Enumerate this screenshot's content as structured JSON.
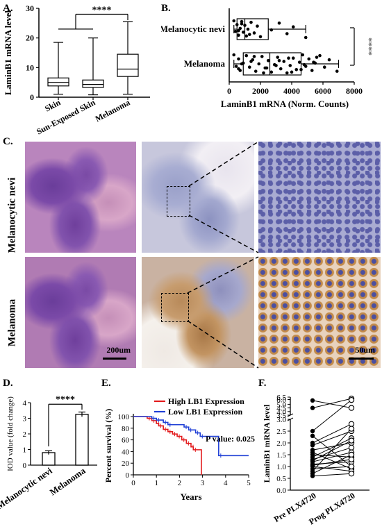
{
  "panels": {
    "a": "A.",
    "b": "B.",
    "c": "C.",
    "d": "D.",
    "e": "E.",
    "f": "F."
  },
  "chart_data": [
    {
      "id": "A",
      "type": "box",
      "ylabel": "LaminB1 mRNA level",
      "ylim": [
        0,
        30
      ],
      "yticks": [
        "0",
        "10",
        "20",
        "30"
      ],
      "categories": [
        "Skin",
        "Sun-Exposed Skin",
        "Melanoma"
      ],
      "boxes": [
        {
          "min": 1,
          "q1": 3.8,
          "median": 5,
          "q3": 6.5,
          "max": 18.5
        },
        {
          "min": 0.8,
          "q1": 3.3,
          "median": 4.3,
          "q3": 5.8,
          "max": 20
        },
        {
          "min": 1,
          "q1": 7,
          "median": 9.5,
          "q3": 14.5,
          "max": 25.5
        }
      ],
      "significance": "****"
    },
    {
      "id": "B",
      "type": "box-scatter",
      "orientation": "horizontal",
      "xlabel": "LaminB1 mRNA (Norm. Counts)",
      "xlim": [
        0,
        8000
      ],
      "xticks": [
        "0",
        "2000",
        "4000",
        "6000",
        "8000"
      ],
      "categories": [
        "Melanocytic nevi",
        "Melanoma"
      ],
      "boxes": [
        {
          "min": 300,
          "q1": 500,
          "median": 1000,
          "q3": 2500,
          "max": 4900
        },
        {
          "min": 300,
          "q1": 900,
          "median": 2600,
          "q3": 4600,
          "max": 7000
        }
      ],
      "points": [
        [
          300,
          400,
          500,
          600,
          700,
          800,
          900,
          1000,
          1100,
          1200,
          1400,
          1600,
          1800,
          2000,
          2700,
          3200,
          3700,
          4100,
          4900,
          600,
          800,
          1300
        ],
        [
          300,
          450,
          600,
          700,
          900,
          1100,
          1300,
          1500,
          1700,
          1900,
          2100,
          2300,
          2500,
          2700,
          2900,
          3100,
          3300,
          3500,
          3700,
          3900,
          4100,
          4300,
          4500,
          4700,
          4900,
          5100,
          5300,
          5500,
          5800,
          6100,
          6400,
          6900,
          800,
          1600,
          2400,
          3200,
          4000,
          4800,
          5600,
          600,
          1400,
          2200,
          3000,
          3800,
          4600,
          5400
        ]
      ],
      "significance": "****"
    },
    {
      "id": "D",
      "type": "bar",
      "ylabel": "IOD value (fold change)",
      "ylim": [
        0,
        4
      ],
      "yticks": [
        "0",
        "1",
        "2",
        "3",
        "4"
      ],
      "categories": [
        "Melanocytic nevi",
        "Melanoma"
      ],
      "values": [
        0.8,
        3.25
      ],
      "errors": [
        0.12,
        0.15
      ],
      "significance": "****"
    },
    {
      "id": "E",
      "type": "line",
      "xlabel": "Years",
      "ylabel": "Percent survival (%)",
      "xlim": [
        0,
        5
      ],
      "ylim": [
        0,
        100
      ],
      "xticks": [
        "0",
        "1",
        "2",
        "3",
        "4",
        "5"
      ],
      "yticks": [
        "0",
        "20",
        "40",
        "60",
        "80",
        "100"
      ],
      "series": [
        {
          "name": "High LB1 Expression",
          "color": "#e31a1c",
          "steps": [
            [
              0,
              100
            ],
            [
              0.6,
              97
            ],
            [
              0.8,
              93
            ],
            [
              1.0,
              88
            ],
            [
              1.1,
              84
            ],
            [
              1.3,
              78
            ],
            [
              1.5,
              74
            ],
            [
              1.7,
              70
            ],
            [
              1.9,
              66
            ],
            [
              2.1,
              60
            ],
            [
              2.3,
              54
            ],
            [
              2.5,
              48
            ],
            [
              2.6,
              43
            ],
            [
              2.95,
              0
            ]
          ]
        },
        {
          "name": "Low LB1 Expression",
          "color": "#1f3fd6",
          "steps": [
            [
              0,
              100
            ],
            [
              0.8,
              97
            ],
            [
              1.0,
              94
            ],
            [
              1.3,
              90
            ],
            [
              1.5,
              86
            ],
            [
              2.2,
              82
            ],
            [
              2.4,
              77
            ],
            [
              2.7,
              72
            ],
            [
              2.9,
              66
            ],
            [
              3.7,
              33
            ],
            [
              5,
              33
            ]
          ]
        }
      ],
      "annotation": "P value: 0.025"
    },
    {
      "id": "F",
      "type": "paired-scatter",
      "ylabel": "LaminB1 mRNA level",
      "categories": [
        "Pre PLX4720",
        "Prog PLX4720"
      ],
      "yticks_lower": [
        "0.0",
        "0.5",
        "1.0",
        "1.5",
        "2.0",
        "2.5",
        "3.0"
      ],
      "yticks_upper": [
        "3.5",
        "4.0",
        "4.5",
        "5.0",
        "6.0",
        "6.5"
      ],
      "pairs": [
        [
          5.8,
          4.5
        ],
        [
          4.5,
          6.2
        ],
        [
          2.3,
          1.0
        ],
        [
          2.0,
          2.8
        ],
        [
          1.9,
          2.5
        ],
        [
          1.7,
          2.0
        ],
        [
          1.6,
          0.9
        ],
        [
          1.5,
          1.4
        ],
        [
          1.4,
          2.2
        ],
        [
          1.3,
          1.8
        ],
        [
          1.2,
          1.6
        ],
        [
          1.1,
          1.2
        ],
        [
          1.0,
          0.8
        ],
        [
          0.9,
          1.0
        ],
        [
          0.8,
          2.6
        ],
        [
          0.7,
          1.5
        ],
        [
          0.6,
          0.7
        ],
        [
          2.5,
          5.9
        ],
        [
          1.25,
          2.1
        ],
        [
          1.05,
          1.3
        ]
      ]
    }
  ],
  "histology": {
    "row1": "Melanocytic nevi",
    "row2": "Melanoma",
    "scale1": "200um",
    "scale2": "50um"
  }
}
